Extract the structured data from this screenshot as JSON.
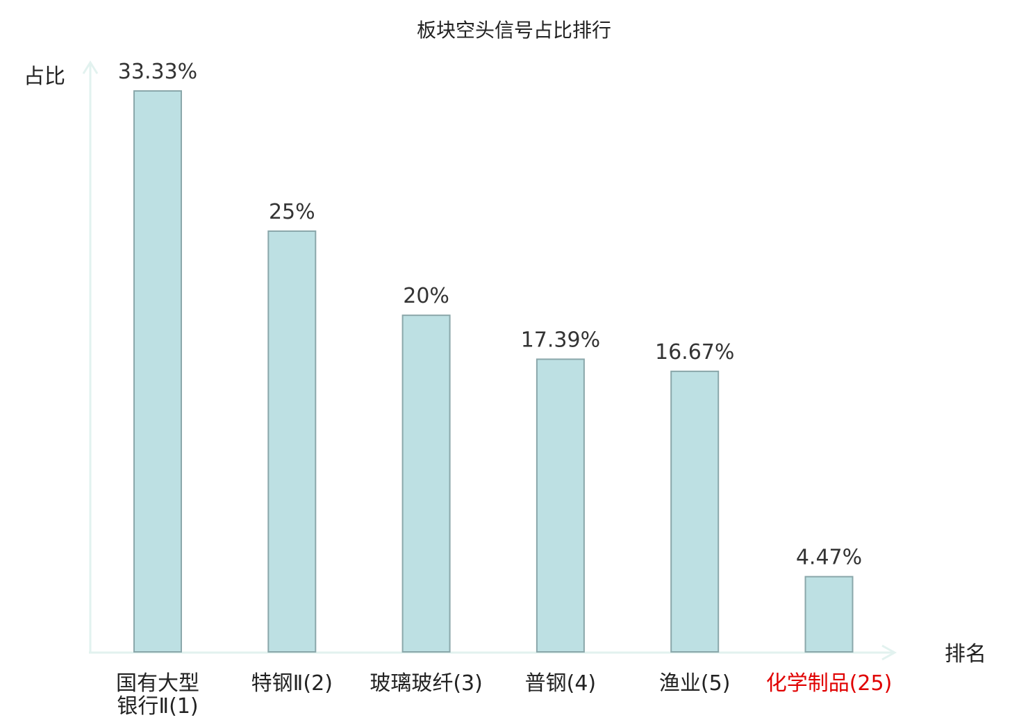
{
  "chart_data": {
    "type": "bar",
    "title": "板块空头信号占比排行",
    "xlabel": "排名",
    "ylabel": "占比",
    "categories": [
      {
        "name": "国有大型银行Ⅱ",
        "rank": "(1)",
        "lines": [
          "国有大型",
          "银行Ⅱ"
        ],
        "highlight": false
      },
      {
        "name": "特钢Ⅱ",
        "rank": "(2)",
        "lines": [
          "特钢Ⅱ"
        ],
        "highlight": false
      },
      {
        "name": "玻璃玻纤",
        "rank": "(3)",
        "lines": [
          "玻璃玻纤"
        ],
        "highlight": false
      },
      {
        "name": "普钢",
        "rank": "(4)",
        "lines": [
          "普钢"
        ],
        "highlight": false
      },
      {
        "name": "渔业",
        "rank": "(5)",
        "lines": [
          "渔业"
        ],
        "highlight": false
      },
      {
        "name": "化学制品",
        "rank": "(25)",
        "lines": [
          "化学制品"
        ],
        "highlight": true
      }
    ],
    "values": [
      33.33,
      25,
      20,
      17.39,
      16.67,
      4.47
    ],
    "value_labels": [
      "33.33%",
      "25%",
      "20%",
      "17.39%",
      "16.67%",
      "4.47%"
    ],
    "ylim": [
      0,
      33.33
    ],
    "grid": false,
    "colors": {
      "bar_fill": "#bde0e3",
      "bar_stroke": "#8aa7aa",
      "axis": "#e2f2ef",
      "highlight": "#e00000"
    }
  }
}
